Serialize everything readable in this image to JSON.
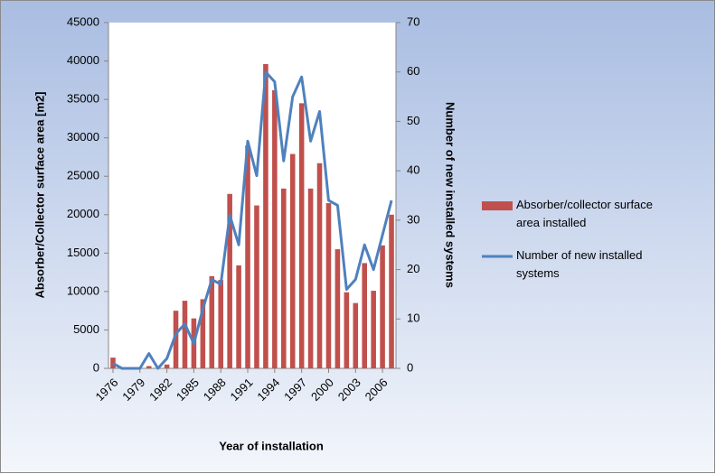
{
  "chart_data": {
    "type": "bar_line",
    "categories": [
      "1976",
      null,
      null,
      "1979",
      null,
      null,
      "1982",
      null,
      null,
      "1985",
      null,
      null,
      "1988",
      null,
      null,
      "1991",
      null,
      null,
      "1994",
      null,
      null,
      "1997",
      null,
      null,
      "2000",
      null,
      null,
      "2003",
      null,
      null,
      "2006",
      null
    ],
    "x_label": "Year of installation",
    "y_label": "Absorber/Collector surface area [m2]",
    "y2_label": "Number of new installed systems",
    "ylim": [
      0,
      45000
    ],
    "yticks": [
      0,
      5000,
      10000,
      15000,
      20000,
      25000,
      30000,
      35000,
      40000,
      45000
    ],
    "y2lim": [
      0,
      70
    ],
    "y2ticks": [
      0,
      10,
      20,
      30,
      40,
      50,
      60,
      70
    ],
    "series": [
      {
        "name": "Absorber/collector surface area installed",
        "type": "bar",
        "color": "#c0504d",
        "values": [
          1400,
          0,
          0,
          0,
          300,
          0,
          500,
          7500,
          8800,
          6500,
          9000,
          12000,
          11500,
          22700,
          13400,
          29000,
          21200,
          39600,
          36200,
          23400,
          27900,
          34500,
          23400,
          26700,
          21500,
          15500,
          9900,
          8500,
          13700,
          10100,
          16000,
          20000
        ]
      },
      {
        "name": "Number of new installed systems",
        "type": "line",
        "axis": "y2",
        "color": "#4f81bd",
        "values": [
          1,
          0,
          0,
          0,
          3,
          0,
          2,
          7,
          9,
          5,
          12,
          18,
          17,
          31,
          25,
          46,
          39,
          60,
          58,
          42,
          55,
          59,
          46,
          52,
          34,
          33,
          16,
          18,
          25,
          20,
          27,
          34
        ]
      }
    ],
    "legend": "right"
  }
}
